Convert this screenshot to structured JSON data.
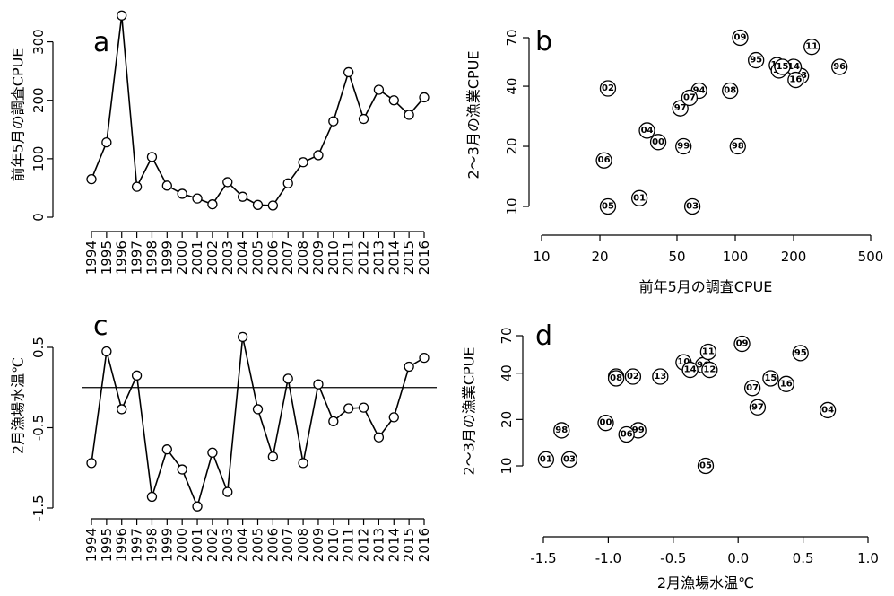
{
  "chart_data": [
    {
      "panel": "a",
      "type": "line",
      "title": "",
      "xlabel": "",
      "ylabel": "前年5月の調査CPUE",
      "x": [
        1994,
        1995,
        1996,
        1997,
        1998,
        1999,
        2000,
        2001,
        2002,
        2003,
        2004,
        2005,
        2006,
        2007,
        2008,
        2009,
        2010,
        2011,
        2012,
        2013,
        2014,
        2015,
        2016
      ],
      "y": [
        65,
        128,
        345,
        52,
        103,
        54,
        40,
        32,
        22,
        60,
        35,
        21,
        20,
        58,
        94,
        106,
        164,
        248,
        168,
        218,
        200,
        175,
        205
      ],
      "ylim": [
        0,
        350
      ],
      "yticks": [
        "0",
        "100",
        "200",
        "300"
      ],
      "grid": false
    },
    {
      "panel": "b",
      "type": "scatter",
      "title": "",
      "xlabel": "前年5月の調査CPUE",
      "ylabel": "2〜3月の漁業CPUE",
      "xscale": "log",
      "yscale": "log",
      "xlim": [
        10,
        500
      ],
      "ylim": [
        10,
        70
      ],
      "xticks": [
        "10",
        "20",
        "50",
        "100",
        "200",
        "500"
      ],
      "yticks": [
        "10",
        "20",
        "40",
        "70"
      ],
      "points": [
        {
          "label": "94",
          "x": 65,
          "y": 38
        },
        {
          "label": "95",
          "x": 128,
          "y": 54
        },
        {
          "label": "96",
          "x": 345,
          "y": 50
        },
        {
          "label": "97",
          "x": 52,
          "y": 31
        },
        {
          "label": "98",
          "x": 103,
          "y": 20
        },
        {
          "label": "99",
          "x": 54,
          "y": 20
        },
        {
          "label": "00",
          "x": 40,
          "y": 21
        },
        {
          "label": "01",
          "x": 32,
          "y": 11
        },
        {
          "label": "02",
          "x": 22,
          "y": 39
        },
        {
          "label": "03",
          "x": 60,
          "y": 10
        },
        {
          "label": "04",
          "x": 35,
          "y": 24
        },
        {
          "label": "05",
          "x": 22,
          "y": 10
        },
        {
          "label": "06",
          "x": 21,
          "y": 17
        },
        {
          "label": "07",
          "x": 58,
          "y": 35
        },
        {
          "label": "08",
          "x": 94,
          "y": 38
        },
        {
          "label": "09",
          "x": 106,
          "y": 70
        },
        {
          "label": "10",
          "x": 164,
          "y": 51
        },
        {
          "label": "11",
          "x": 248,
          "y": 63
        },
        {
          "label": "12",
          "x": 168,
          "y": 48
        },
        {
          "label": "13",
          "x": 218,
          "y": 45
        },
        {
          "label": "14",
          "x": 200,
          "y": 50
        },
        {
          "label": "15",
          "x": 175,
          "y": 50
        },
        {
          "label": "16",
          "x": 205,
          "y": 43
        }
      ],
      "grid": false
    },
    {
      "panel": "c",
      "type": "line",
      "title": "",
      "xlabel": "",
      "ylabel": "2月漁場水温℃",
      "x": [
        1994,
        1995,
        1996,
        1997,
        1998,
        1999,
        2000,
        2001,
        2002,
        2003,
        2004,
        2005,
        2006,
        2007,
        2008,
        2009,
        2010,
        2011,
        2012,
        2013,
        2014,
        2015,
        2016
      ],
      "y": [
        -0.94,
        0.45,
        -0.27,
        0.15,
        -1.36,
        -0.77,
        -1.02,
        -1.48,
        -0.81,
        -1.3,
        0.63,
        -0.27,
        -0.86,
        0.11,
        -0.94,
        0.04,
        -0.42,
        -0.26,
        -0.25,
        -0.62,
        -0.37,
        0.26,
        0.37
      ],
      "ylim": [
        -1.6,
        1.0
      ],
      "yticks": [
        "-1.5",
        "-0.5",
        "0.5"
      ],
      "hline": 0,
      "grid": false
    },
    {
      "panel": "d",
      "type": "scatter",
      "title": "",
      "xlabel": "2月漁場水温℃",
      "ylabel": "2〜3月の漁業CPUE",
      "yscale": "log",
      "xlim": [
        -1.5,
        1.0
      ],
      "ylim": [
        10,
        70
      ],
      "xticks": [
        "-1.5",
        "-1.0",
        "-0.5",
        "0.0",
        "0.5",
        "1.0"
      ],
      "yticks": [
        "10",
        "20",
        "40",
        "70"
      ],
      "points": [
        {
          "label": "94",
          "x": -0.94,
          "y": 38
        },
        {
          "label": "95",
          "x": 0.48,
          "y": 54
        },
        {
          "label": "96",
          "x": -0.27,
          "y": 45
        },
        {
          "label": "97",
          "x": 0.15,
          "y": 24
        },
        {
          "label": "98",
          "x": -1.36,
          "y": 17
        },
        {
          "label": "99",
          "x": -0.77,
          "y": 17
        },
        {
          "label": "00",
          "x": -1.02,
          "y": 19
        },
        {
          "label": "01",
          "x": -1.48,
          "y": 11
        },
        {
          "label": "02",
          "x": -0.81,
          "y": 38
        },
        {
          "label": "03",
          "x": -1.3,
          "y": 11
        },
        {
          "label": "04",
          "x": 0.69,
          "y": 23
        },
        {
          "label": "05",
          "x": -0.25,
          "y": 10
        },
        {
          "label": "06",
          "x": -0.86,
          "y": 16
        },
        {
          "label": "07",
          "x": 0.11,
          "y": 32
        },
        {
          "label": "08",
          "x": -0.94,
          "y": 37
        },
        {
          "label": "09",
          "x": 0.03,
          "y": 62
        },
        {
          "label": "10",
          "x": -0.42,
          "y": 47
        },
        {
          "label": "11",
          "x": -0.23,
          "y": 55
        },
        {
          "label": "12",
          "x": -0.22,
          "y": 42
        },
        {
          "label": "13",
          "x": -0.6,
          "y": 38
        },
        {
          "label": "14",
          "x": -0.37,
          "y": 42
        },
        {
          "label": "15",
          "x": 0.25,
          "y": 37
        },
        {
          "label": "16",
          "x": 0.37,
          "y": 34
        }
      ],
      "grid": false
    }
  ]
}
